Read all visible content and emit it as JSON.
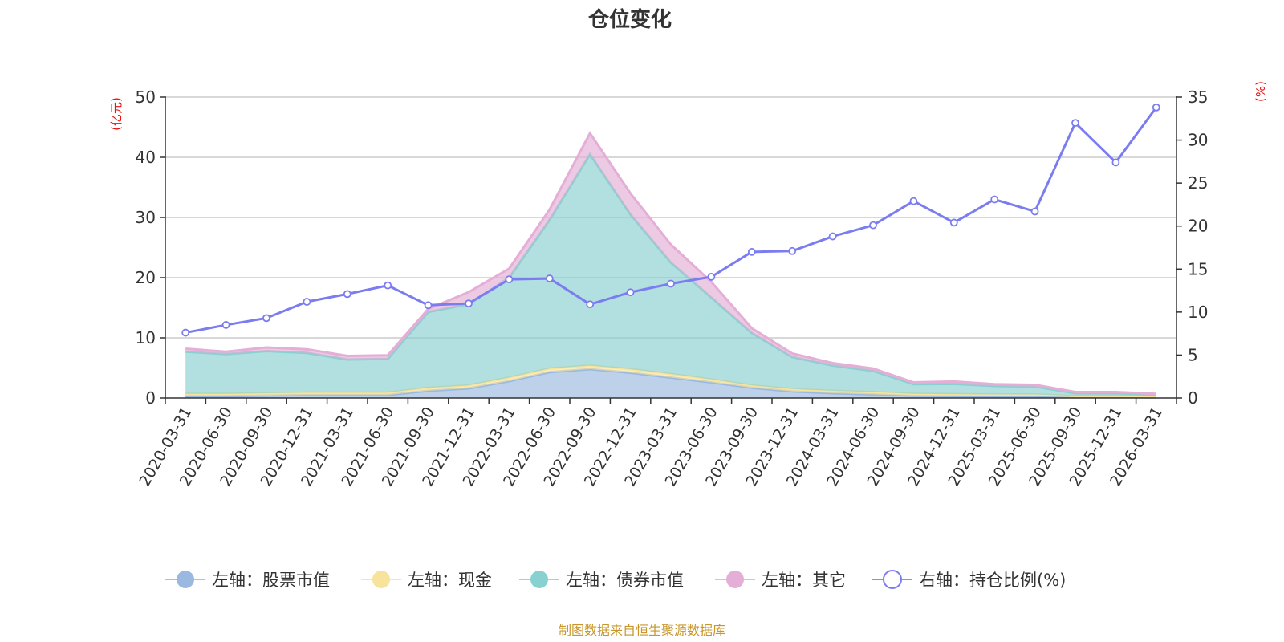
{
  "colors": {
    "stock": "#9ab8e0",
    "cash": "#f7e39c",
    "bond": "#89d0d0",
    "other": "#e4aed6",
    "ratio": "#7b7cf0",
    "unit_red": "#ee1111",
    "source": "#c8962a",
    "grid": "#cccccc",
    "axis": "#333333"
  },
  "chart_data": {
    "type": "area",
    "title": "仓位变化",
    "source_text": "制图数据来自恒生聚源数据库",
    "left_axis": {
      "unit": "(亿元)",
      "ylim": [
        0,
        50
      ],
      "ticks": [
        0,
        10,
        20,
        30,
        40,
        50
      ]
    },
    "right_axis": {
      "unit": "(%)",
      "ylim": [
        0,
        35
      ],
      "ticks": [
        0,
        5,
        10,
        15,
        20,
        25,
        30,
        35
      ]
    },
    "categories": [
      "2020-03-31",
      "2020-06-30",
      "2020-09-30",
      "2020-12-31",
      "2021-03-31",
      "2021-06-30",
      "2021-09-30",
      "2021-12-31",
      "2022-03-31",
      "2022-06-30",
      "2022-09-30",
      "2022-12-31",
      "2023-03-31",
      "2023-06-30",
      "2023-09-30",
      "2023-12-31",
      "2024-03-31",
      "2024-06-30",
      "2024-09-30",
      "2024-12-31",
      "2025-03-31",
      "2025-06-30",
      "2025-09-30",
      "2025-12-31",
      "2026-03-31"
    ],
    "series": [
      {
        "key": "stock",
        "name": "左轴：股票市值",
        "axis": "left",
        "style": "stacked-area",
        "values": [
          0.3,
          0.3,
          0.4,
          0.5,
          0.5,
          0.5,
          1.2,
          1.6,
          2.8,
          4.3,
          4.8,
          4.2,
          3.4,
          2.6,
          1.7,
          1.1,
          0.8,
          0.6,
          0.4,
          0.35,
          0.3,
          0.3,
          0.15,
          0.15,
          0.1
        ]
      },
      {
        "key": "cash",
        "name": "左轴：现金",
        "axis": "left",
        "style": "stacked-area",
        "values": [
          0.4,
          0.4,
          0.4,
          0.4,
          0.4,
          0.4,
          0.5,
          0.5,
          0.6,
          0.6,
          0.6,
          0.6,
          0.6,
          0.5,
          0.4,
          0.4,
          0.4,
          0.4,
          0.3,
          0.3,
          0.3,
          0.3,
          0.2,
          0.2,
          0.2
        ]
      },
      {
        "key": "bond",
        "name": "左轴：债券市值",
        "axis": "left",
        "style": "stacked-area",
        "values": [
          7.0,
          6.6,
          7.0,
          6.6,
          5.5,
          5.6,
          12.6,
          13.5,
          16.6,
          24.7,
          35.1,
          25.7,
          18.5,
          13.6,
          8.7,
          5.3,
          4.2,
          3.5,
          1.6,
          1.7,
          1.4,
          1.3,
          0.45,
          0.45,
          0.25
        ]
      },
      {
        "key": "other",
        "name": "左轴：其它",
        "axis": "left",
        "style": "stacked-area",
        "values": [
          0.5,
          0.4,
          0.6,
          0.6,
          0.6,
          0.6,
          0.5,
          2.0,
          1.5,
          1.7,
          3.5,
          3.5,
          3.0,
          2.6,
          0.8,
          0.6,
          0.4,
          0.4,
          0.3,
          0.4,
          0.3,
          0.3,
          0.2,
          0.2,
          0.15
        ]
      },
      {
        "key": "ratio",
        "name": "右轴：持仓比例(%)",
        "axis": "right",
        "style": "line",
        "values": [
          7.6,
          8.5,
          9.3,
          11.2,
          12.1,
          13.1,
          10.8,
          11.0,
          13.8,
          13.9,
          10.9,
          12.3,
          13.3,
          14.1,
          17.0,
          17.1,
          18.8,
          20.1,
          22.9,
          20.4,
          23.1,
          21.7,
          32.0,
          27.4,
          33.8
        ]
      }
    ]
  }
}
